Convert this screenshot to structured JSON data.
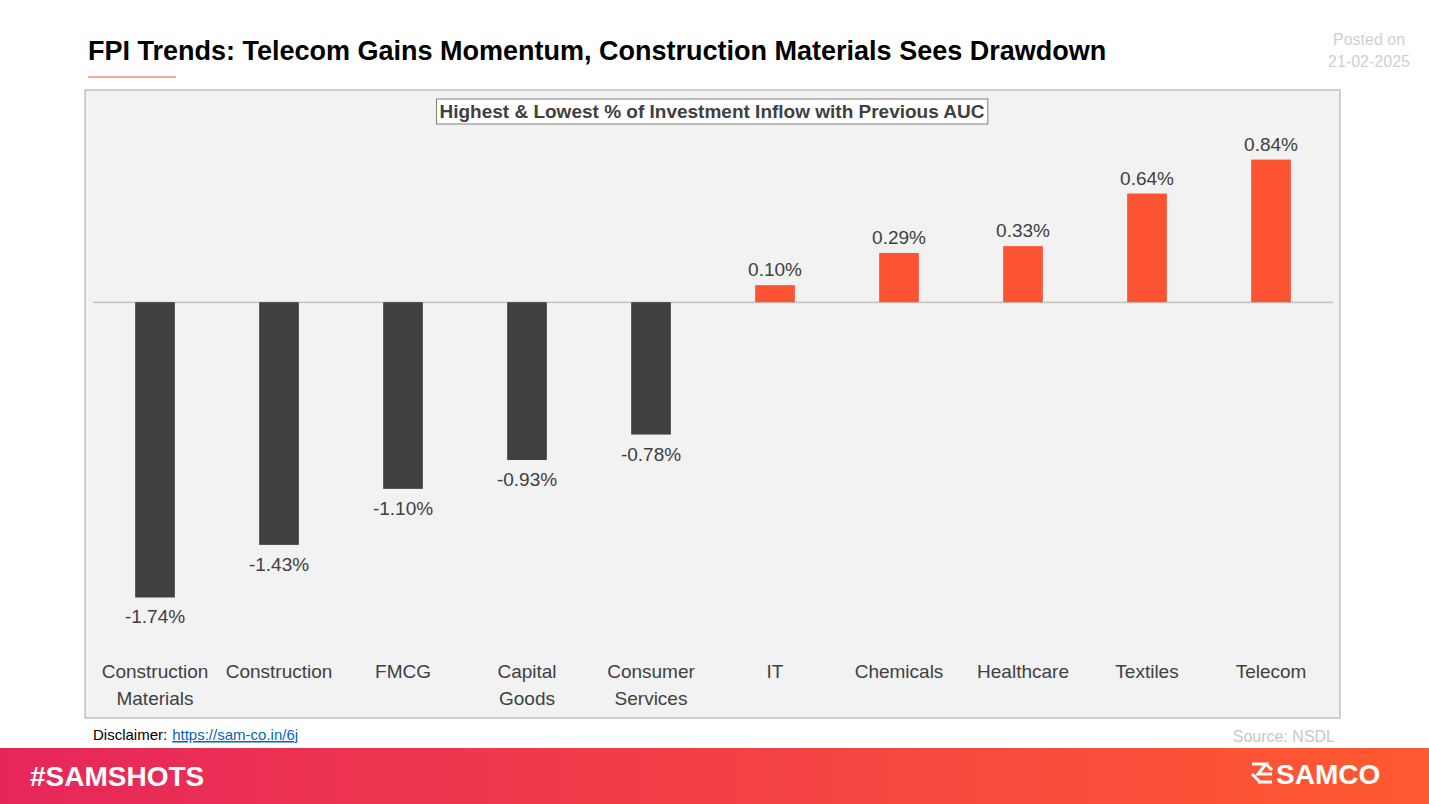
{
  "chart_data": {
    "type": "bar",
    "title": "FPI Trends: Telecom Gains Momentum, Construction Materials Sees Drawdown",
    "subtitle": "Highest & Lowest % of Investment Inflow with Previous AUC",
    "categories": [
      "Construction Materials",
      "Construction",
      "FMCG",
      "Capital Goods",
      "Consumer Services",
      "IT",
      "Chemicals",
      "Healthcare",
      "Textiles",
      "Telecom"
    ],
    "values": [
      -1.74,
      -1.43,
      -1.1,
      -0.93,
      -0.78,
      0.1,
      0.29,
      0.33,
      0.64,
      0.84
    ],
    "value_labels": [
      "-1.74%",
      "-1.43%",
      "-1.10%",
      "-0.93%",
      "-0.78%",
      "0.10%",
      "0.29%",
      "0.33%",
      "0.64%",
      "0.84%"
    ],
    "colors": [
      "#404040",
      "#404040",
      "#404040",
      "#404040",
      "#404040",
      "#fc5433",
      "#fc5433",
      "#fc5433",
      "#fc5433",
      "#fc5433"
    ],
    "ylim": [
      -2.45,
      1.25
    ],
    "yticks": [
      0
    ],
    "data_labels": true,
    "tick_labels": "x",
    "grid": false,
    "annotations": {
      "posted_label": "Posted on",
      "posted_date": "21-02-2025",
      "disclaimer_label": "Disclaimer:",
      "disclaimer_link": "https://sam-co.in/6j",
      "source": "Source: NSDL",
      "hashtag": "#SAMSHOTS",
      "brand": "SAMCO"
    }
  }
}
